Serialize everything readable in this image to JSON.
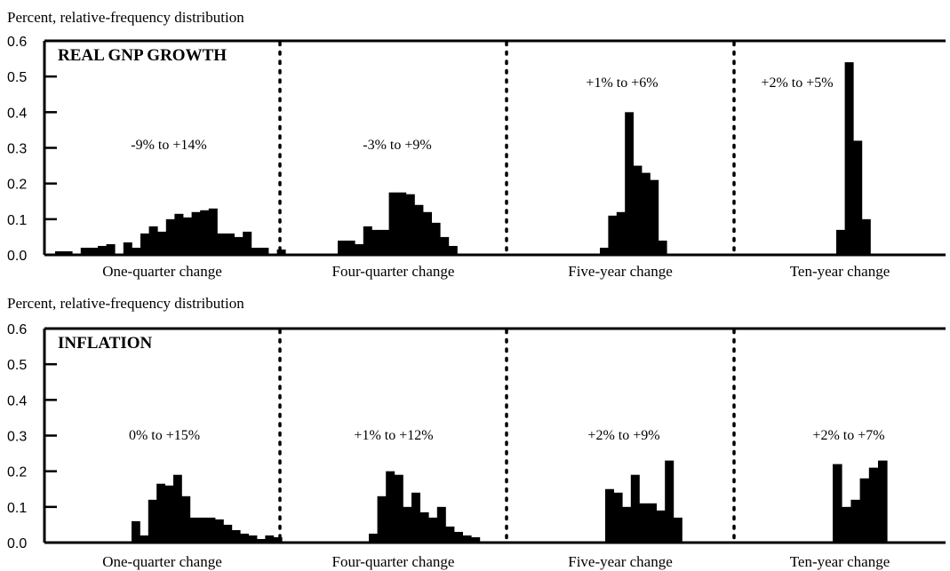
{
  "chart_data": [
    {
      "type": "bar",
      "ylabel": "Percent, relative-frequency distribution",
      "title": "REAL GNP GROWTH",
      "ylim": [
        0,
        0.6
      ],
      "yticks": [
        "0.0",
        "0.1",
        "0.2",
        "0.3",
        "0.4",
        "0.5",
        "0.6"
      ],
      "panels": [
        {
          "label": "One-quarter change",
          "range_text": "-9% to +14%",
          "values": [
            0.01,
            0.01,
            0,
            0.02,
            0.02,
            0.025,
            0.03,
            0,
            0.035,
            0.02,
            0.06,
            0.08,
            0.065,
            0.1,
            0.115,
            0.105,
            0.12,
            0.125,
            0.13,
            0.06,
            0.06,
            0.05,
            0.065,
            0.02,
            0.02,
            0,
            0.015
          ]
        },
        {
          "label": "Four-quarter change",
          "range_text": "-3% to +9%",
          "values": [
            0.04,
            0.04,
            0.03,
            0.08,
            0.07,
            0.07,
            0.175,
            0.175,
            0.17,
            0.14,
            0.12,
            0.09,
            0.05,
            0.025
          ]
        },
        {
          "label": "Five-year change",
          "range_text": "+1% to +6%",
          "values": [
            0.02,
            0.11,
            0.12,
            0.4,
            0.25,
            0.23,
            0.21,
            0.04
          ]
        },
        {
          "label": "Ten-year change",
          "range_text": "+2% to +5%",
          "values": [
            0.07,
            0.54,
            0.32,
            0.1
          ]
        }
      ]
    },
    {
      "type": "bar",
      "ylabel": "Percent, relative-frequency distribution",
      "title": "INFLATION",
      "ylim": [
        0,
        0.6
      ],
      "yticks": [
        "0.0",
        "0.1",
        "0.2",
        "0.3",
        "0.4",
        "0.5",
        "0.6"
      ],
      "panels": [
        {
          "label": "One-quarter change",
          "range_text": "0% to +15%",
          "values": [
            0.06,
            0.02,
            0.12,
            0.165,
            0.16,
            0.19,
            0.13,
            0.07,
            0.07,
            0.07,
            0.065,
            0.05,
            0.035,
            0.025,
            0.02,
            0.01,
            0.02,
            0.015
          ]
        },
        {
          "label": "Four-quarter change",
          "range_text": "+1% to +12%",
          "values": [
            0.025,
            0.13,
            0.2,
            0.19,
            0.1,
            0.14,
            0.085,
            0.07,
            0.1,
            0.045,
            0.03,
            0.02,
            0.015
          ]
        },
        {
          "label": "Five-year change",
          "range_text": "+2% to +9%",
          "values": [
            0.15,
            0.14,
            0.1,
            0.19,
            0.11,
            0.11,
            0.09,
            0.23,
            0.07
          ]
        },
        {
          "label": "Ten-year change",
          "range_text": "+2% to +7%",
          "values": [
            0.22,
            0.1,
            0.12,
            0.18,
            0.21,
            0.23
          ]
        }
      ]
    }
  ]
}
